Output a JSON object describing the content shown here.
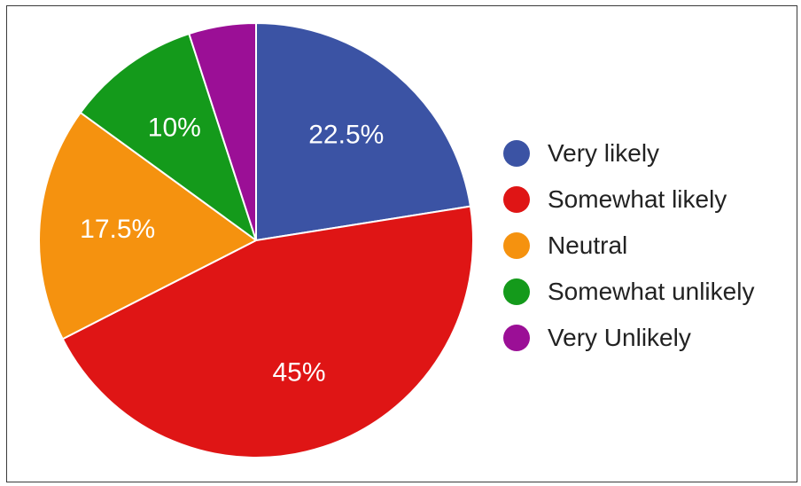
{
  "chart_data": {
    "type": "pie",
    "title": "",
    "start_angle_deg": 90,
    "direction": "clockwise",
    "legend_position": "right",
    "slices": [
      {
        "label": "Very likely",
        "value": 22.5,
        "display": "22.5%",
        "color": "#3b53a4"
      },
      {
        "label": "Somewhat likely",
        "value": 45,
        "display": "45%",
        "color": "#df1515"
      },
      {
        "label": "Neutral",
        "value": 17.5,
        "display": "17.5%",
        "color": "#f5920f"
      },
      {
        "label": "Somewhat unlikely",
        "value": 10,
        "display": "10%",
        "color": "#149a1b"
      },
      {
        "label": "Very Unlikely",
        "value": 5,
        "display": "",
        "color": "#9b0f96"
      }
    ]
  }
}
